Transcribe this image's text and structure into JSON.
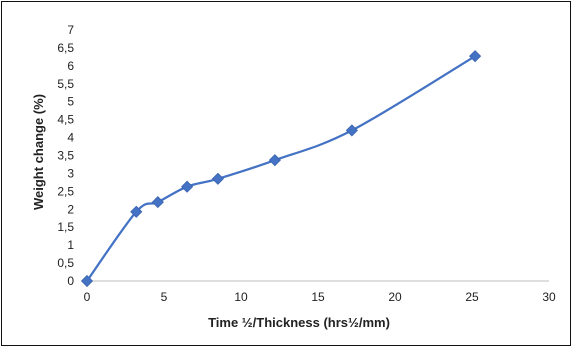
{
  "chart_data": {
    "type": "line",
    "title": "",
    "xlabel": "Time ½/Thickness (hrs½/mm)",
    "ylabel": "Weight change (%)",
    "xlim": [
      0,
      30
    ],
    "ylim": [
      0,
      7
    ],
    "x_ticks": [
      "0",
      "5",
      "10",
      "15",
      "20",
      "25",
      "30"
    ],
    "y_ticks": [
      "0",
      "0,5",
      "1",
      "1,5",
      "2",
      "2,5",
      "3",
      "3,5",
      "4",
      "4,5",
      "5",
      "5,5",
      "6",
      "6,5",
      "7"
    ],
    "grid": false,
    "legend": "none",
    "marker": "diamond",
    "smooth": true,
    "color": "#4472C4",
    "series": [
      {
        "x": [
          0,
          3.2,
          4.6,
          6.5,
          8.5,
          12.2,
          17.2,
          25.2
        ],
        "y": [
          0,
          1.93,
          2.2,
          2.63,
          2.85,
          3.37,
          4.2,
          6.27
        ]
      }
    ]
  }
}
